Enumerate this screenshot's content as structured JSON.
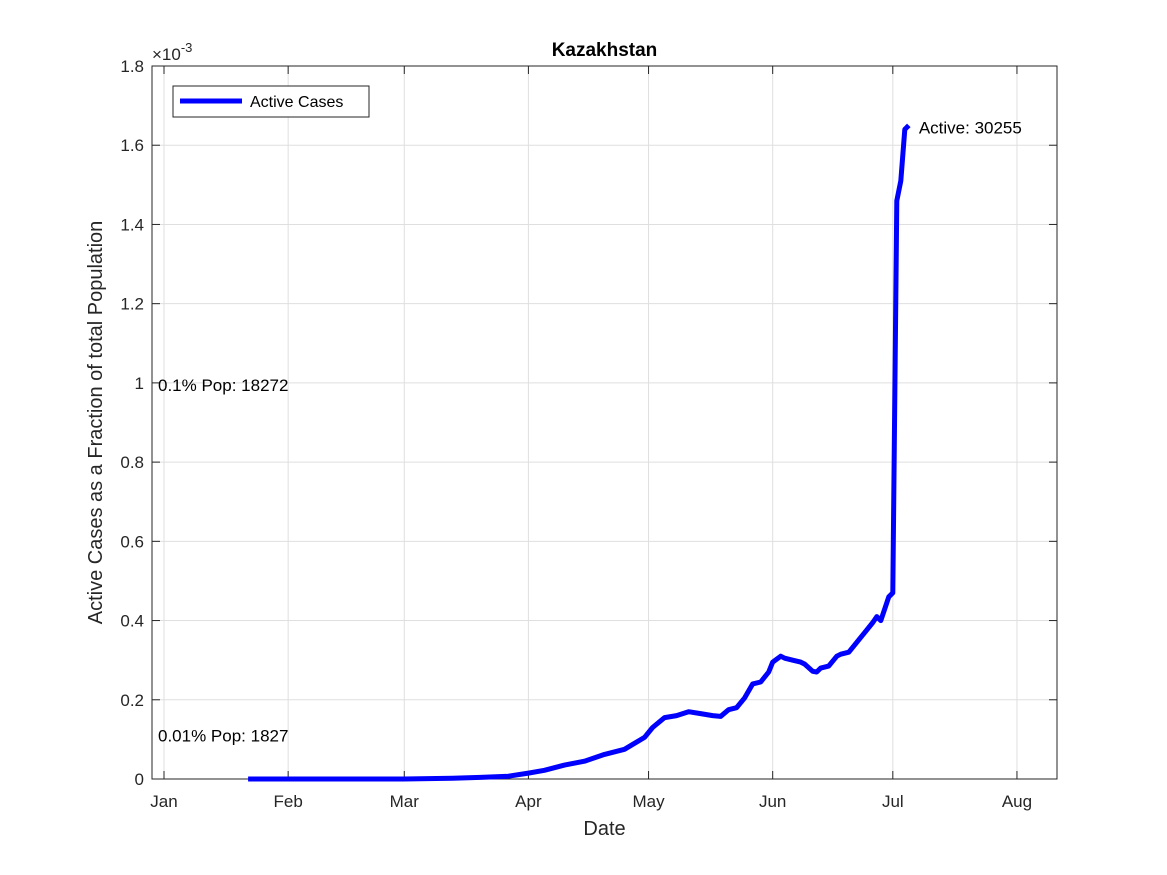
{
  "chart_data": {
    "type": "line",
    "title": "Kazakhstan",
    "xlabel": "Date",
    "ylabel": "Active Cases as a Fraction of total Population",
    "y_exponent_label": "×10",
    "y_exponent_power": "-3",
    "x_ticks": [
      "Jan",
      "Feb",
      "Mar",
      "Apr",
      "May",
      "Jun",
      "Jul",
      "Aug"
    ],
    "x_tick_dates": [
      "2020-01-01",
      "2020-02-01",
      "2020-03-01",
      "2020-04-01",
      "2020-05-01",
      "2020-06-01",
      "2020-07-01",
      "2020-08-01"
    ],
    "y_ticks": [
      "0",
      "0.2",
      "0.4",
      "0.6",
      "0.8",
      "1",
      "1.2",
      "1.4",
      "1.6",
      "1.8"
    ],
    "y_tick_values": [
      0,
      0.2,
      0.4,
      0.6,
      0.8,
      1.0,
      1.2,
      1.4,
      1.6,
      1.8
    ],
    "xlim": [
      "2019-12-29",
      "2020-08-11"
    ],
    "ylim": [
      0,
      1.8
    ],
    "grid": true,
    "legend_position": "top-left",
    "series": [
      {
        "name": "Active Cases",
        "color": "#0000ff",
        "x": [
          "2020-01-22",
          "2020-02-01",
          "2020-03-01",
          "2020-03-13",
          "2020-03-20",
          "2020-03-27",
          "2020-04-01",
          "2020-04-05",
          "2020-04-10",
          "2020-04-15",
          "2020-04-20",
          "2020-04-25",
          "2020-04-30",
          "2020-05-02",
          "2020-05-05",
          "2020-05-08",
          "2020-05-11",
          "2020-05-14",
          "2020-05-17",
          "2020-05-19",
          "2020-05-21",
          "2020-05-23",
          "2020-05-25",
          "2020-05-27",
          "2020-05-29",
          "2020-05-31",
          "2020-06-01",
          "2020-06-03",
          "2020-06-04",
          "2020-06-06",
          "2020-06-08",
          "2020-06-09",
          "2020-06-11",
          "2020-06-12",
          "2020-06-13",
          "2020-06-15",
          "2020-06-17",
          "2020-06-18",
          "2020-06-20",
          "2020-06-22",
          "2020-06-24",
          "2020-06-26",
          "2020-06-27",
          "2020-06-28",
          "2020-06-30",
          "2020-07-01",
          "2020-07-02",
          "2020-07-03",
          "2020-07-04",
          "2020-07-05"
        ],
        "y": [
          0,
          0,
          0,
          0.002,
          0.004,
          0.007,
          0.015,
          0.022,
          0.035,
          0.045,
          0.062,
          0.075,
          0.105,
          0.13,
          0.155,
          0.16,
          0.17,
          0.165,
          0.16,
          0.158,
          0.175,
          0.18,
          0.205,
          0.24,
          0.245,
          0.27,
          0.295,
          0.31,
          0.305,
          0.3,
          0.295,
          0.29,
          0.272,
          0.27,
          0.28,
          0.285,
          0.31,
          0.315,
          0.32,
          0.345,
          0.37,
          0.395,
          0.41,
          0.4,
          0.46,
          0.47,
          1.46,
          1.51,
          1.64,
          1.65
        ]
      }
    ],
    "annotations": [
      {
        "text": "Active: 30255",
        "x": "2020-07-05",
        "y": 1.65
      },
      {
        "text": "0.1% Pop: 18272",
        "x": "2019-12-30",
        "y": 1.0
      },
      {
        "text": "0.01% Pop: 1827",
        "x": "2019-12-30",
        "y": 0.1
      }
    ]
  }
}
